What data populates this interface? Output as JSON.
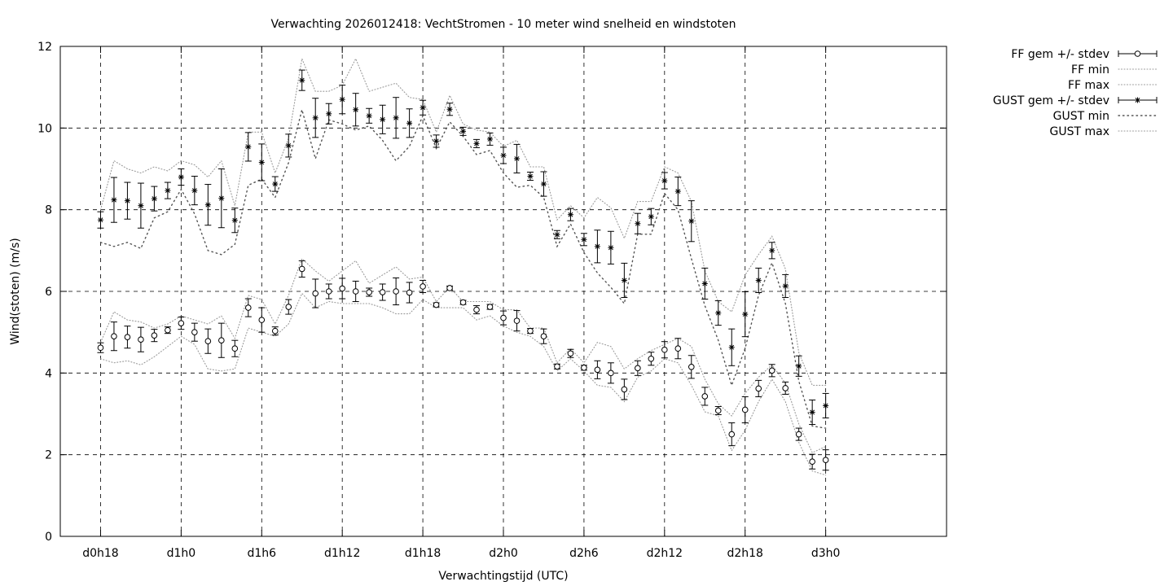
{
  "chart_data": {
    "type": "line",
    "title": "Verwachting 2026012418: VechtStromen - 10 meter wind snelheid en windstoten",
    "xlabel": "Verwachtingstijd (UTC)",
    "ylabel": "Wind(stoten) (m/s)",
    "ylim": [
      0,
      12
    ],
    "yticks": [
      0,
      2,
      4,
      6,
      8,
      10,
      12
    ],
    "xlim": [
      15,
      81
    ],
    "xticks": [
      {
        "x": 18,
        "label": "d0h18"
      },
      {
        "x": 24,
        "label": "d1h0"
      },
      {
        "x": 30,
        "label": "d1h6"
      },
      {
        "x": 36,
        "label": "d1h12"
      },
      {
        "x": 42,
        "label": "d1h18"
      },
      {
        "x": 48,
        "label": "d2h0"
      },
      {
        "x": 54,
        "label": "d2h6"
      },
      {
        "x": 60,
        "label": "d2h12"
      },
      {
        "x": 66,
        "label": "d2h18"
      },
      {
        "x": 72,
        "label": "d3h0"
      }
    ],
    "grid": true,
    "legend_position": "outside-right-top",
    "x": [
      18,
      19,
      20,
      21,
      22,
      23,
      24,
      25,
      26,
      27,
      28,
      29,
      30,
      31,
      32,
      33,
      34,
      35,
      36,
      37,
      38,
      39,
      40,
      41,
      42,
      43,
      44,
      45,
      46,
      47,
      48,
      49,
      50,
      51,
      52,
      53,
      54,
      55,
      56,
      57,
      58,
      59,
      60,
      61,
      62,
      63,
      64,
      65,
      66,
      67,
      68,
      69,
      70,
      71,
      72
    ],
    "series": [
      {
        "name": "FF gem +/- stdev",
        "marker": "circle",
        "values": [
          4.62,
          4.9,
          4.88,
          4.82,
          4.92,
          5.05,
          5.22,
          5.0,
          4.78,
          4.8,
          4.6,
          5.6,
          5.3,
          5.03,
          5.62,
          6.55,
          5.95,
          6.0,
          6.07,
          6.0,
          5.98,
          5.98,
          6.0,
          5.97,
          6.12,
          5.67,
          6.08,
          5.73,
          5.55,
          5.62,
          5.35,
          5.28,
          5.03,
          4.9,
          4.16,
          4.48,
          4.13,
          4.08,
          4.0,
          3.6,
          4.12,
          4.35,
          4.57,
          4.6,
          4.15,
          3.43,
          3.08,
          2.5,
          3.1,
          3.62,
          4.06,
          3.63,
          2.5,
          1.83,
          1.87
        ],
        "stdev": [
          0.12,
          0.35,
          0.27,
          0.3,
          0.15,
          0.08,
          0.15,
          0.22,
          0.3,
          0.42,
          0.2,
          0.22,
          0.3,
          0.1,
          0.18,
          0.2,
          0.35,
          0.18,
          0.25,
          0.25,
          0.1,
          0.2,
          0.33,
          0.25,
          0.15,
          0.05,
          0.05,
          0.05,
          0.1,
          0.06,
          0.17,
          0.25,
          0.06,
          0.18,
          0.06,
          0.1,
          0.06,
          0.22,
          0.25,
          0.25,
          0.18,
          0.16,
          0.2,
          0.25,
          0.28,
          0.22,
          0.1,
          0.28,
          0.32,
          0.2,
          0.15,
          0.15,
          0.15,
          0.18,
          0.25
        ]
      },
      {
        "name": "FF min",
        "style": "dotted",
        "values": [
          4.35,
          4.25,
          4.3,
          4.2,
          4.4,
          4.65,
          4.9,
          4.7,
          4.1,
          4.05,
          4.1,
          5.1,
          5.0,
          4.9,
          5.2,
          5.95,
          5.6,
          5.75,
          5.7,
          5.7,
          5.7,
          5.6,
          5.45,
          5.45,
          5.8,
          5.6,
          5.6,
          5.6,
          5.3,
          5.4,
          5.15,
          5.0,
          4.9,
          4.65,
          4.05,
          4.35,
          4.05,
          3.7,
          3.65,
          3.3,
          3.9,
          4.05,
          4.35,
          4.25,
          3.7,
          3.05,
          2.95,
          2.1,
          2.6,
          3.3,
          3.85,
          3.3,
          2.3,
          1.6,
          1.5
        ]
      },
      {
        "name": "FF max",
        "style": "dotted",
        "values": [
          4.75,
          5.5,
          5.3,
          5.25,
          5.1,
          5.2,
          5.4,
          5.3,
          5.2,
          5.4,
          4.85,
          5.9,
          5.8,
          5.2,
          5.9,
          6.8,
          6.5,
          6.25,
          6.5,
          6.75,
          6.2,
          6.4,
          6.6,
          6.3,
          6.35,
          5.75,
          6.1,
          5.75,
          5.75,
          5.75,
          5.55,
          5.55,
          5.1,
          5.1,
          4.25,
          4.6,
          4.25,
          4.75,
          4.65,
          4.1,
          4.35,
          4.55,
          4.7,
          4.85,
          4.65,
          3.85,
          3.25,
          2.95,
          3.5,
          3.9,
          4.2,
          3.75,
          2.75,
          2.05,
          2.2
        ]
      },
      {
        "name": "GUST gem +/- stdev",
        "marker": "star",
        "values": [
          7.75,
          8.24,
          8.22,
          8.1,
          8.27,
          8.47,
          8.8,
          8.47,
          8.12,
          8.28,
          7.74,
          9.54,
          9.16,
          8.63,
          9.57,
          11.17,
          10.25,
          10.35,
          10.7,
          10.45,
          10.3,
          10.21,
          10.25,
          10.12,
          10.5,
          9.68,
          10.46,
          9.92,
          9.62,
          9.73,
          9.33,
          9.25,
          8.82,
          8.63,
          7.39,
          7.88,
          7.27,
          7.1,
          7.07,
          6.27,
          7.66,
          7.83,
          8.71,
          8.45,
          7.72,
          6.19,
          5.47,
          4.63,
          5.44,
          6.27,
          7.0,
          6.13,
          4.17,
          3.04,
          3.2
        ]
      },
      {
        "name": "GUST min",
        "style": "dotted",
        "values": [
          7.2,
          7.1,
          7.2,
          7.05,
          7.8,
          7.95,
          8.5,
          7.9,
          7.0,
          6.9,
          7.15,
          8.6,
          8.75,
          8.3,
          9.15,
          10.45,
          9.25,
          10.2,
          10.1,
          9.95,
          10.05,
          9.7,
          9.2,
          9.55,
          10.3,
          9.5,
          10.15,
          9.8,
          9.35,
          9.45,
          8.9,
          8.55,
          8.6,
          8.3,
          7.1,
          7.65,
          6.95,
          6.45,
          6.1,
          5.7,
          7.4,
          7.4,
          8.4,
          8.0,
          6.8,
          5.65,
          4.8,
          3.7,
          4.6,
          5.9,
          6.7,
          5.7,
          3.8,
          2.7,
          2.65
        ]
      },
      {
        "name": "GUST max",
        "style": "dotted",
        "values": [
          8.0,
          9.2,
          9.0,
          8.9,
          9.05,
          8.95,
          9.2,
          9.1,
          8.8,
          9.2,
          8.1,
          9.9,
          9.9,
          8.9,
          9.75,
          11.7,
          10.9,
          10.9,
          11.05,
          11.7,
          10.9,
          11.0,
          11.1,
          10.75,
          10.7,
          9.9,
          10.8,
          10.1,
          9.95,
          9.9,
          9.55,
          9.7,
          9.05,
          9.05,
          7.75,
          8.1,
          7.8,
          8.3,
          8.05,
          7.3,
          8.2,
          8.2,
          9.05,
          8.9,
          8.2,
          6.5,
          5.75,
          5.5,
          6.4,
          6.9,
          7.35,
          6.55,
          4.5,
          3.7,
          3.7
        ]
      },
      {
        "name": "GUST stdev",
        "legend": false,
        "values": [
          0.2,
          0.55,
          0.45,
          0.55,
          0.3,
          0.2,
          0.2,
          0.35,
          0.5,
          0.72,
          0.3,
          0.35,
          0.45,
          0.18,
          0.28,
          0.25,
          0.48,
          0.25,
          0.35,
          0.4,
          0.18,
          0.35,
          0.5,
          0.35,
          0.18,
          0.15,
          0.15,
          0.1,
          0.1,
          0.15,
          0.2,
          0.35,
          0.1,
          0.3,
          0.1,
          0.15,
          0.15,
          0.4,
          0.4,
          0.42,
          0.25,
          0.2,
          0.2,
          0.35,
          0.5,
          0.38,
          0.3,
          0.45,
          0.55,
          0.3,
          0.2,
          0.28,
          0.25,
          0.3,
          0.3
        ]
      }
    ]
  }
}
